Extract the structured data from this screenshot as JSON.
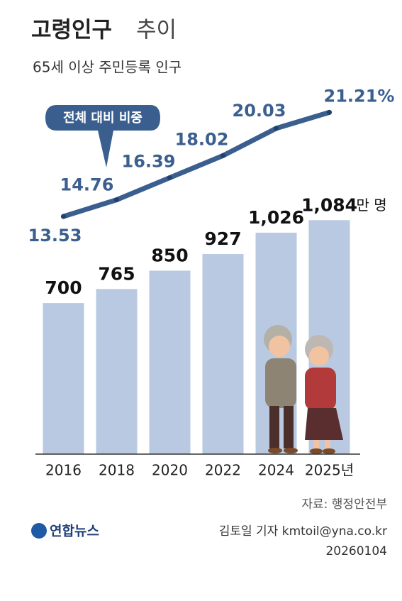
{
  "chart_data": {
    "type": "bar",
    "title": "고령인구",
    "title_light": "추이",
    "subtitle": "65세 이상 주민등록 인구",
    "annotation": "전체 대비 비중",
    "unit": "만 명",
    "categories": [
      "2016",
      "2018",
      "2020",
      "2022",
      "2024",
      "2025년"
    ],
    "series": [
      {
        "type": "bar",
        "color": "#b9c9e1",
        "values": [
          700,
          765,
          850,
          927,
          1026,
          1084
        ],
        "value_labels": [
          "700",
          "765",
          "850",
          "927",
          "1,026",
          "1,084"
        ]
      },
      {
        "type": "line",
        "axis": "y2",
        "color": "#3a5f8f",
        "values": [
          13.53,
          14.76,
          16.39,
          18.02,
          20.03,
          21.21
        ],
        "value_labels": [
          "13.53",
          "14.76",
          "16.39",
          "18.02",
          "20.03",
          "21.21%"
        ]
      }
    ],
    "ylim": [
      0,
      1200
    ],
    "y2lim": [
      5,
      25
    ]
  },
  "footer": {
    "source": "자료: 행정안전부",
    "logo": "연합뉴스",
    "credit": "김토일 기자 kmtoil@yna.co.kr",
    "date": "20260104"
  }
}
